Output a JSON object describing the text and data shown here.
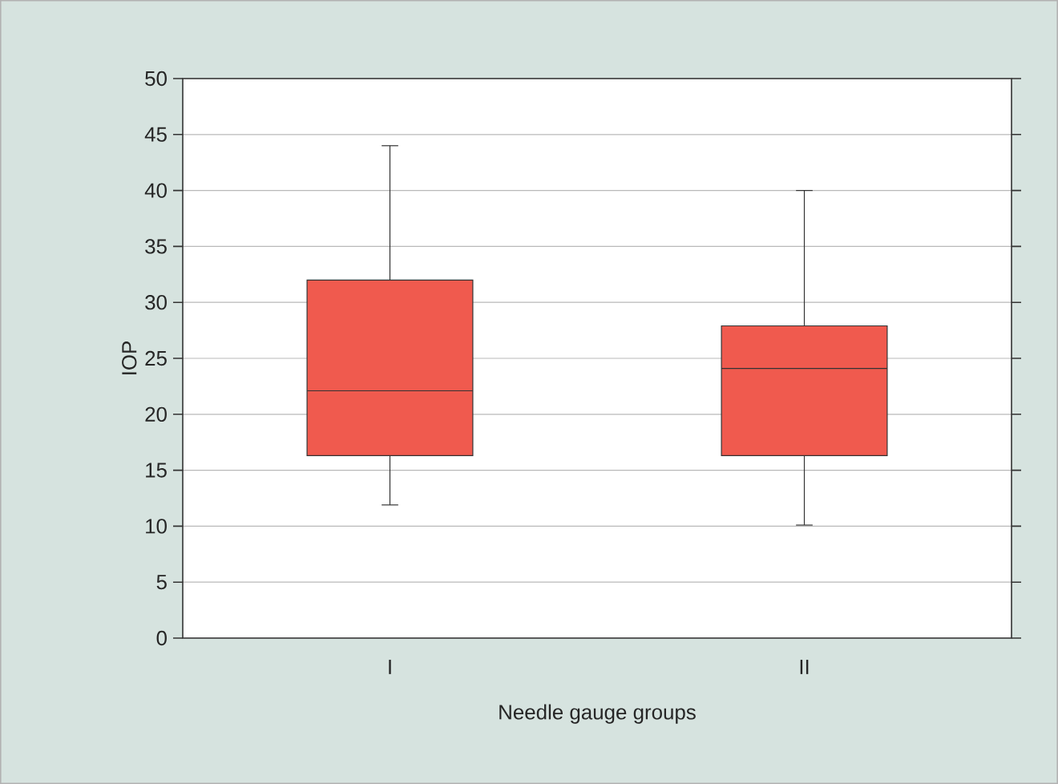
{
  "chart_data": {
    "type": "box",
    "xlabel": "Needle gauge groups",
    "ylabel": "IOP",
    "categories": [
      "I",
      "II"
    ],
    "series": [
      {
        "color": "#f05a4e",
        "boxes": [
          {
            "low": 11.9,
            "q1": 16.3,
            "median": 22.1,
            "q3": 32.0,
            "high": 44.0
          },
          {
            "low": 10.1,
            "q1": 16.3,
            "median": 24.1,
            "q3": 27.9,
            "high": 40.0
          }
        ]
      }
    ],
    "ylim": [
      0,
      50
    ],
    "yticks": [
      0,
      5,
      10,
      15,
      20,
      25,
      30,
      35,
      40,
      45,
      50
    ],
    "grid": "y"
  }
}
